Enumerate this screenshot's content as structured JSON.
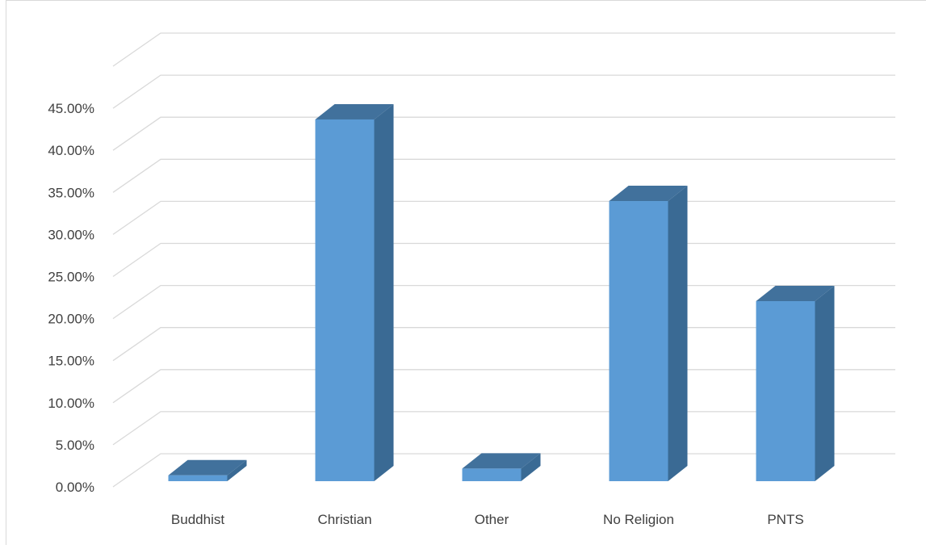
{
  "chart_data": {
    "type": "bar",
    "style": "3d-column",
    "categories": [
      "Buddhist",
      "Christian",
      "Other",
      "No Religion",
      "PNTS"
    ],
    "values": [
      0.7,
      43.0,
      1.5,
      33.3,
      21.4
    ],
    "y_tick_labels": [
      "0.00%",
      "5.00%",
      "10.00%",
      "15.00%",
      "20.00%",
      "25.00%",
      "30.00%",
      "35.00%",
      "40.00%",
      "45.00%"
    ],
    "ylim": [
      0,
      45
    ],
    "grid": true,
    "legend": "none",
    "title": "",
    "xlabel": "",
    "ylabel": "",
    "colors": {
      "bar_front": "#5b9bd5",
      "bar_top": "#41719c",
      "bar_side": "#3a6a94",
      "gridline": "#d9d9d9",
      "text": "#404040"
    }
  }
}
